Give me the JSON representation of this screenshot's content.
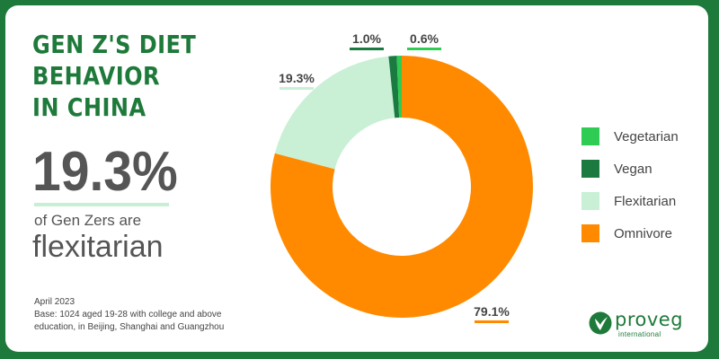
{
  "title_lines": [
    "GEN Z'S DIET",
    "BEHAVIOR",
    "IN CHINA"
  ],
  "highlight": {
    "value": "19.3%",
    "caption": "of Gen Zers are",
    "word": "flexitarian"
  },
  "footnote": {
    "date": "April 2023",
    "base_line1": "Base: 1024 aged 19-28 with college and above",
    "base_line2": "education, in Beijing, Shanghai and Guangzhou"
  },
  "logo": {
    "wordmark": "proveg",
    "subtitle": "international"
  },
  "colors": {
    "brand_green": "#1e7a3a",
    "background": "#ffffff",
    "highlight_underline": "#c8eed4"
  },
  "chart_data": {
    "type": "donut",
    "title": "",
    "categories": [
      "Vegetarian",
      "Vegan",
      "Flexitarian",
      "Omnivore"
    ],
    "values": [
      0.6,
      1.0,
      19.3,
      79.1
    ],
    "unit": "%",
    "data_labels": [
      "0.6%",
      "1.0%",
      "19.3%",
      "79.1%"
    ],
    "colors": [
      "#2ecc52",
      "#1a7a40",
      "#c9f0d5",
      "#ff8a00"
    ],
    "start_angle_deg": 0,
    "direction": "clockwise",
    "legend": {
      "position": "right",
      "order": [
        "Vegetarian",
        "Vegan",
        "Flexitarian",
        "Omnivore"
      ]
    }
  }
}
